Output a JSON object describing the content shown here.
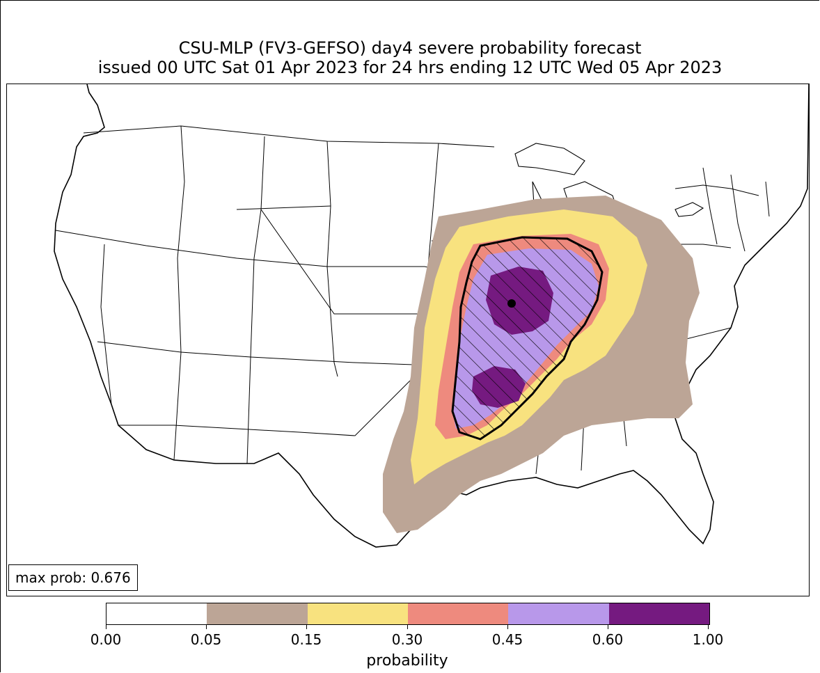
{
  "title": {
    "line1": "CSU-MLP (FV3-GEFSO) day4 severe probability forecast",
    "line2": "issued 00 UTC Sat 01 Apr 2023 for 24 hrs ending 12 UTC Wed 05 Apr 2023"
  },
  "map": {
    "region": "contiguous-united-states",
    "max_prob_text": "max prob: 0.676",
    "max_prob_value": 0.676,
    "hatched_region": "significant-severe"
  },
  "colorbar": {
    "label": "probability",
    "ticks": [
      "0.00",
      "0.05",
      "0.15",
      "0.30",
      "0.45",
      "0.60",
      "1.00"
    ],
    "bins": [
      {
        "from": 0.0,
        "to": 0.05,
        "color": "#ffffff"
      },
      {
        "from": 0.05,
        "to": 0.15,
        "color": "#bca596"
      },
      {
        "from": 0.15,
        "to": 0.3,
        "color": "#f8e27f"
      },
      {
        "from": 0.3,
        "to": 0.45,
        "color": "#ee8a7e"
      },
      {
        "from": 0.45,
        "to": 0.6,
        "color": "#b898ea"
      },
      {
        "from": 0.6,
        "to": 1.0,
        "color": "#751a80"
      }
    ]
  }
}
